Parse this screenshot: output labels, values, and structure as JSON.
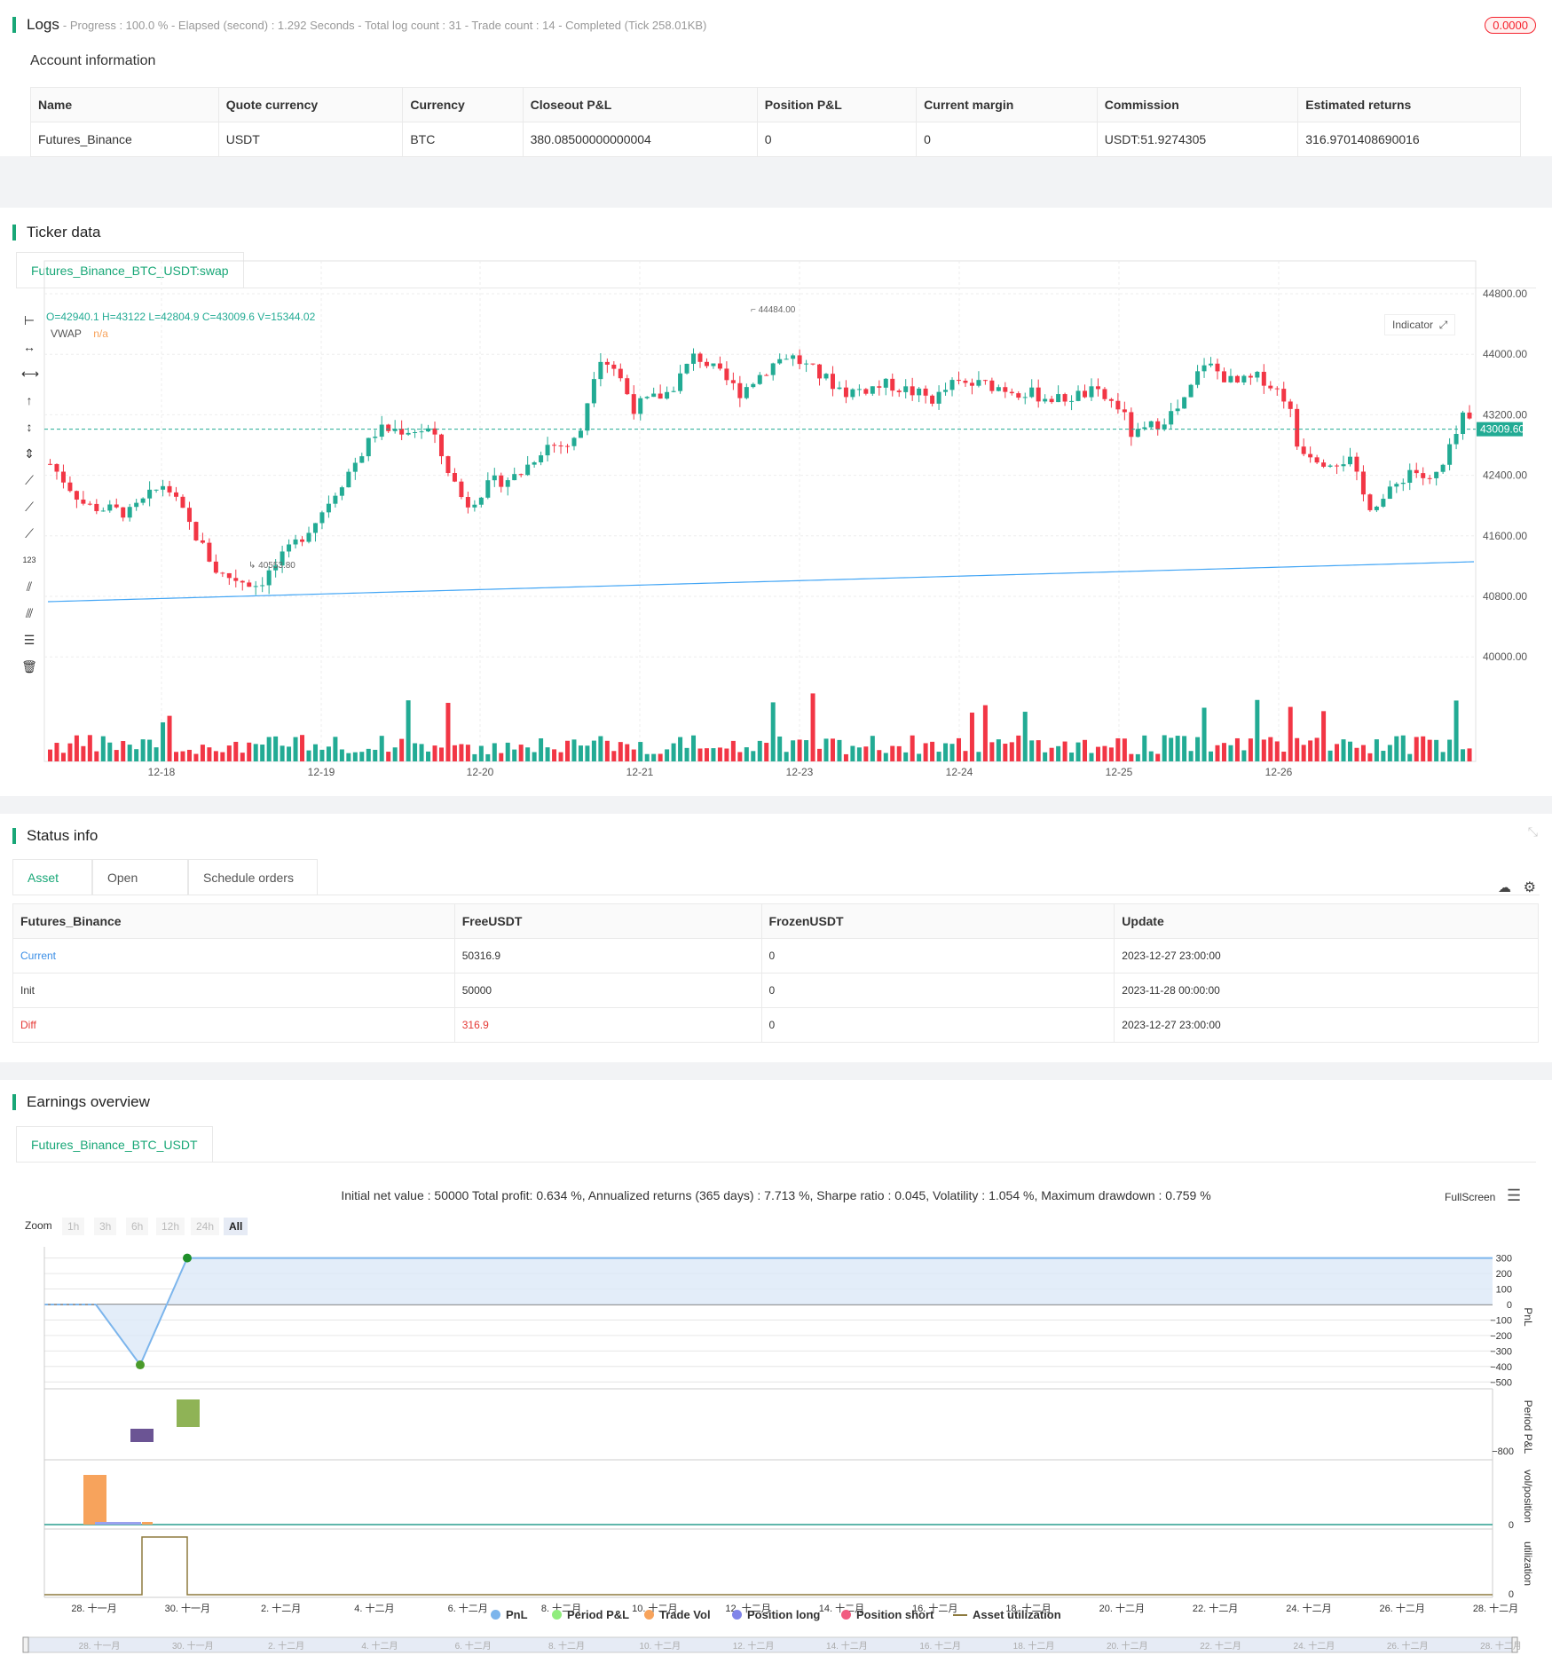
{
  "logs": {
    "title": "Logs",
    "status": "- Progress : 100.0 % - Elapsed (second) : 1.292  Seconds - Total log count : 31 - Trade count : 14 - Completed (Tick 258.01KB)",
    "badge": "0.0000"
  },
  "account": {
    "title": "Account information",
    "headers": [
      "Name",
      "Quote currency",
      "Currency",
      "Closeout P&L",
      "Position P&L",
      "Current margin",
      "Commission",
      "Estimated returns"
    ],
    "row": [
      "Futures_Binance",
      "USDT",
      "BTC",
      "380.08500000000004",
      "0",
      "0",
      "USDT:51.9274305",
      "316.9701408690016"
    ]
  },
  "ticker": {
    "title": "Ticker data",
    "tab": "Futures_Binance_BTC_USDT:swap",
    "ohlc": "O=42940.1 H=43122 L=42804.9 C=43009.6 V=15344.02",
    "vwap_label": "VWAP",
    "vwap_value": "n/a",
    "indicator_btn": "Indicator",
    "price_ticks": [
      "44800.00",
      "44000.00",
      "43200.00",
      "42400.00",
      "41600.00",
      "40800.00",
      "40000.00"
    ],
    "last_price": "43009.60",
    "high_marker": "44484.00",
    "low_marker": "40553.80",
    "date_ticks": [
      "12-18",
      "12-19",
      "12-20",
      "12-21",
      "12-23",
      "12-24",
      "12-25",
      "12-26"
    ],
    "colors": {
      "up": "#22ab94",
      "down": "#f23645",
      "vwap": "#42a5f5"
    }
  },
  "status": {
    "title": "Status info",
    "tabs": [
      "Asset",
      "Open orders",
      "Schedule orders"
    ],
    "headers": [
      "Futures_Binance",
      "FreeUSDT",
      "FrozenUSDT",
      "Update"
    ],
    "rows": [
      [
        "Current",
        "50316.9",
        "0",
        "2023-12-27 23:00:00"
      ],
      [
        "Init",
        "50000",
        "0",
        "2023-11-28 00:00:00"
      ],
      [
        "Diff",
        "316.9",
        "0",
        "2023-12-27 23:00:00"
      ]
    ]
  },
  "earnings": {
    "title": "Earnings overview",
    "tab": "Futures_Binance_BTC_USDT",
    "summary": "Initial net value : 50000 Total profit: 0.634 %, Annualized returns (365 days) : 7.713 %, Sharpe ratio : 0.045, Volatility : 1.054 %, Maximum drawdown : 0.759 %",
    "fullscreen": "FullScreen",
    "zoom_label": "Zoom",
    "zoom_options": [
      "1h",
      "3h",
      "6h",
      "12h",
      "24h",
      "All"
    ],
    "pnl_ticks": [
      "300",
      "200",
      "100",
      "0",
      "-100",
      "-200",
      "-300",
      "-400",
      "-500"
    ],
    "period_tick": "-800",
    "vol_tick": "0",
    "util_tick": "0",
    "axis_titles": [
      "PnL",
      "Period P&L",
      "vol/position",
      "utilization"
    ],
    "date_ticks": [
      "28. 十一月",
      "30. 十一月",
      "2. 十二月",
      "4. 十二月",
      "6. 十二月",
      "8. 十二月",
      "10. 十二月",
      "12. 十二月",
      "14. 十二月",
      "16. 十二月",
      "18. 十二月",
      "20. 十二月",
      "22. 十二月",
      "24. 十二月",
      "26. 十二月",
      "28. 十二月"
    ],
    "legend": [
      {
        "label": "PnL",
        "color": "#7cb5ec"
      },
      {
        "label": "Period P&L",
        "color": "#90ed7d"
      },
      {
        "label": "Trade Vol",
        "color": "#f7a35c"
      },
      {
        "label": "Position long",
        "color": "#8085e9"
      },
      {
        "label": "Position short",
        "color": "#f15c80"
      },
      {
        "label": "Asset utilization",
        "color": "#8d7a3e"
      }
    ]
  }
}
